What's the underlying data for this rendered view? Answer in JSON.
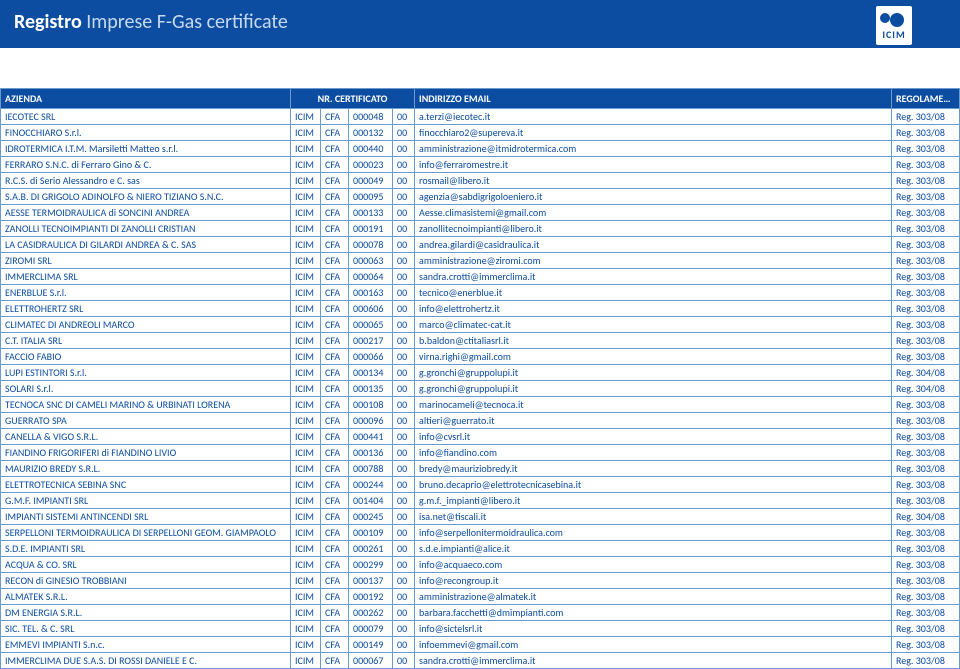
{
  "header": {
    "title_main": "Registro",
    "title_accent": "Imprese F-Gas certificate",
    "logo_text": "ICIM"
  },
  "columns": {
    "azienda": "AZIENDA",
    "certificato": "NR. CERTIFICATO",
    "email": "INDIRIZZO EMAIL",
    "regolamento": "REGOLAMENTO"
  },
  "rows": [
    {
      "a": "IECOTEC SRL",
      "c1": "ICIM",
      "c2": "CFA",
      "c3": "000048",
      "c4": "00",
      "e": "a.terzi@iecotec.it",
      "r": "Reg. 303/08"
    },
    {
      "a": "FINOCCHIARO S.r.l.",
      "c1": "ICIM",
      "c2": "CFA",
      "c3": "000132",
      "c4": "00",
      "e": "finocchiaro2@supereva.it",
      "r": "Reg. 303/08"
    },
    {
      "a": "IDROTERMICA I.T.M. Marsiletti Matteo s.r.l.",
      "c1": "ICIM",
      "c2": "CFA",
      "c3": "000440",
      "c4": "00",
      "e": "amministrazione@itmidrotermica.com",
      "r": "Reg. 303/08"
    },
    {
      "a": "FERRARO S.N.C. di Ferraro Gino & C.",
      "c1": "ICIM",
      "c2": "CFA",
      "c3": "000023",
      "c4": "00",
      "e": "info@ferraromestre.it",
      "r": "Reg. 303/08"
    },
    {
      "a": "R.C.S. di Serio Alessandro e C. sas",
      "c1": "ICIM",
      "c2": "CFA",
      "c3": "000049",
      "c4": "00",
      "e": "rosmail@libero.it",
      "r": "Reg. 303/08"
    },
    {
      "a": "S.A.B. DI GRIGOLO ADINOLFO & NIERO TIZIANO S.N.C.",
      "c1": "ICIM",
      "c2": "CFA",
      "c3": "000095",
      "c4": "00",
      "e": "agenzia@sabdigrigoloeniero.it",
      "r": "Reg. 303/08"
    },
    {
      "a": "AESSE TERMOIDRAULICA di SONCINI ANDREA",
      "c1": "ICIM",
      "c2": "CFA",
      "c3": "000133",
      "c4": "00",
      "e": "Aesse.climasistemi@gmail.com",
      "r": "Reg. 303/08"
    },
    {
      "a": "ZANOLLI TECNOIMPIANTI DI ZANOLLI CRISTIAN",
      "c1": "ICIM",
      "c2": "CFA",
      "c3": "000191",
      "c4": "00",
      "e": "zanollitecnoimpianti@libero.it",
      "r": "Reg. 303/08"
    },
    {
      "a": "LA CASIDRAULICA DI GILARDI ANDREA & C. SAS",
      "c1": "ICIM",
      "c2": "CFA",
      "c3": "000078",
      "c4": "00",
      "e": "andrea.gilardi@casidraulica.it",
      "r": "Reg. 303/08"
    },
    {
      "a": "ZIROMI SRL",
      "c1": "ICIM",
      "c2": "CFA",
      "c3": "000063",
      "c4": "00",
      "e": "amministrazione@ziromi.com",
      "r": "Reg. 303/08"
    },
    {
      "a": "IMMERCLIMA SRL",
      "c1": "ICIM",
      "c2": "CFA",
      "c3": "000064",
      "c4": "00",
      "e": "sandra.crotti@immerclima.it",
      "r": "Reg. 303/08"
    },
    {
      "a": "ENERBLUE S.r.l.",
      "c1": "ICIM",
      "c2": "CFA",
      "c3": "000163",
      "c4": "00",
      "e": "tecnico@enerblue.it",
      "r": "Reg. 303/08"
    },
    {
      "a": "ELETTROHERTZ SRL",
      "c1": "ICIM",
      "c2": "CFA",
      "c3": "000606",
      "c4": "00",
      "e": "info@elettrohertz.it",
      "r": "Reg. 303/08"
    },
    {
      "a": "CLIMATEC DI ANDREOLI MARCO",
      "c1": "ICIM",
      "c2": "CFA",
      "c3": "000065",
      "c4": "00",
      "e": "marco@climatec-cat.it",
      "r": "Reg. 303/08"
    },
    {
      "a": "C.T. ITALIA SRL",
      "c1": "ICIM",
      "c2": "CFA",
      "c3": "000217",
      "c4": "00",
      "e": "b.baldon@ctitaliasrl.it",
      "r": "Reg. 303/08"
    },
    {
      "a": "FACCIO FABIO",
      "c1": "ICIM",
      "c2": "CFA",
      "c3": "000066",
      "c4": "00",
      "e": "virna.righi@gmail.com",
      "r": "Reg. 303/08"
    },
    {
      "a": "LUPI ESTINTORI S.r.l.",
      "c1": "ICIM",
      "c2": "CFA",
      "c3": "000134",
      "c4": "00",
      "e": "g.gronchi@gruppolupi.it",
      "r": "Reg. 304/08"
    },
    {
      "a": "SOLARI S.r.l.",
      "c1": "ICIM",
      "c2": "CFA",
      "c3": "000135",
      "c4": "00",
      "e": "g.gronchi@gruppolupi.it",
      "r": "Reg. 304/08"
    },
    {
      "a": "TECNOCA SNC DI CAMELI MARINO & URBINATI LORENA",
      "c1": "ICIM",
      "c2": "CFA",
      "c3": "000108",
      "c4": "00",
      "e": "marinocameli@tecnoca.it",
      "r": "Reg. 303/08"
    },
    {
      "a": "GUERRATO SPA",
      "c1": "ICIM",
      "c2": "CFA",
      "c3": "000096",
      "c4": "00",
      "e": "altieri@guerrato.it",
      "r": "Reg. 303/08"
    },
    {
      "a": "CANELLA & VIGO S.R.L.",
      "c1": "ICIM",
      "c2": "CFA",
      "c3": "000441",
      "c4": "00",
      "e": "info@cvsrl.it",
      "r": "Reg. 303/08"
    },
    {
      "a": "FIANDINO FRIGORIFERI di FIANDINO LIVIO",
      "c1": "ICIM",
      "c2": "CFA",
      "c3": "000136",
      "c4": "00",
      "e": "info@fiandino.com",
      "r": "Reg. 303/08"
    },
    {
      "a": "MAURIZIO BREDY S.R.L.",
      "c1": "ICIM",
      "c2": "CFA",
      "c3": "000788",
      "c4": "00",
      "e": "bredy@mauriziobredy.it",
      "r": "Reg. 303/08"
    },
    {
      "a": "ELETTROTECNICA SEBINA SNC",
      "c1": "ICIM",
      "c2": "CFA",
      "c3": "000244",
      "c4": "00",
      "e": "bruno.decaprio@elettrotecnicasebina.it",
      "r": "Reg. 303/08"
    },
    {
      "a": "G.M.F. IMPIANTI SRL",
      "c1": "ICIM",
      "c2": "CFA",
      "c3": "001404",
      "c4": "00",
      "e": "g.m.f._impianti@libero.it",
      "r": "Reg. 303/08"
    },
    {
      "a": "IMPIANTI SISTEMI ANTINCENDI SRL",
      "c1": "ICIM",
      "c2": "CFA",
      "c3": "000245",
      "c4": "00",
      "e": "isa.net@tiscali.it",
      "r": "Reg. 304/08"
    },
    {
      "a": "SERPELLONI TERMOIDRAULICA DI SERPELLONI GEOM. GIAMPAOLO",
      "c1": "ICIM",
      "c2": "CFA",
      "c3": "000109",
      "c4": "00",
      "e": "info@serpellonitermoidraulica.com",
      "r": "Reg. 303/08"
    },
    {
      "a": "S.D.E. IMPIANTI SRL",
      "c1": "ICIM",
      "c2": "CFA",
      "c3": "000261",
      "c4": "00",
      "e": "s.d.e.impianti@alice.it",
      "r": "Reg. 303/08"
    },
    {
      "a": "ACQUA & CO. SRL",
      "c1": "ICIM",
      "c2": "CFA",
      "c3": "000299",
      "c4": "00",
      "e": "info@acquaeco.com",
      "r": "Reg. 303/08"
    },
    {
      "a": "RECON di GINESIO TROBBIANI",
      "c1": "ICIM",
      "c2": "CFA",
      "c3": "000137",
      "c4": "00",
      "e": "info@recongroup.it",
      "r": "Reg. 303/08"
    },
    {
      "a": "ALMATEK S.R.L.",
      "c1": "ICIM",
      "c2": "CFA",
      "c3": "000192",
      "c4": "00",
      "e": "amministrazione@almatek.it",
      "r": "Reg. 303/08"
    },
    {
      "a": "DM ENERGIA S.R.L.",
      "c1": "ICIM",
      "c2": "CFA",
      "c3": "000262",
      "c4": "00",
      "e": "barbara.facchetti@dmimpianti.com",
      "r": "Reg. 303/08"
    },
    {
      "a": "SIC. TEL. & C. SRL",
      "c1": "ICIM",
      "c2": "CFA",
      "c3": "000079",
      "c4": "00",
      "e": "info@sictelsrl.it",
      "r": "Reg. 303/08"
    },
    {
      "a": "EMMEVI IMPIANTI S.n.c.",
      "c1": "ICIM",
      "c2": "CFA",
      "c3": "000149",
      "c4": "00",
      "e": "infoemmevi@gmail.com",
      "r": "Reg. 303/08"
    },
    {
      "a": "IMMERCLIMA DUE S.A.S. DI ROSSI DANIELE E C.",
      "c1": "ICIM",
      "c2": "CFA",
      "c3": "000067",
      "c4": "00",
      "e": "sandra.crotti@immerclima.it",
      "r": "Reg. 303/08"
    }
  ]
}
